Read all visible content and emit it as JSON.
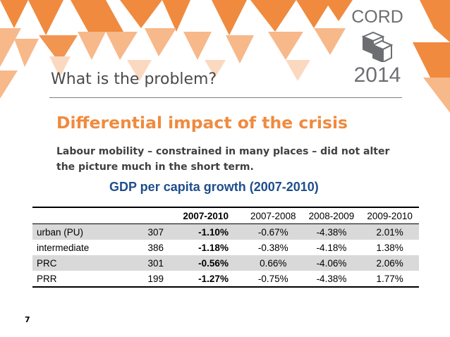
{
  "logo": {
    "top_text": "CORD",
    "bottom_text": "2014"
  },
  "slide": {
    "title": "What is the problem?",
    "subtitle": "Differential impact of the crisis",
    "body": "Labour mobility – constrained in many places – did not alter the picture much in the short term.",
    "page_number": "7"
  },
  "table": {
    "title": "GDP per capita growth (2007-2010)",
    "headers": [
      "",
      "",
      "2007-2010",
      "2007-2008",
      "2008-2009",
      "2009-2010"
    ],
    "rows": [
      [
        "urban (PU)",
        "307",
        "-1.10%",
        "-0.67%",
        "-4.38%",
        "2.01%"
      ],
      [
        "intermediate",
        "386",
        "-1.18%",
        "-0.38%",
        "-4.18%",
        "1.38%"
      ],
      [
        "PRC",
        "301",
        "-0.56%",
        "0.66%",
        "-4.06%",
        "2.06%"
      ],
      [
        "PRR",
        "199",
        "-1.27%",
        "-0.75%",
        "-4.38%",
        "1.77%"
      ]
    ]
  },
  "colors": {
    "accent_orange": "#f08a3e",
    "light_orange": "#f7b88a",
    "title_blue": "#1f4e8c",
    "row_shade": "#d9d9d9",
    "logo_gray": "#6d6e71"
  }
}
